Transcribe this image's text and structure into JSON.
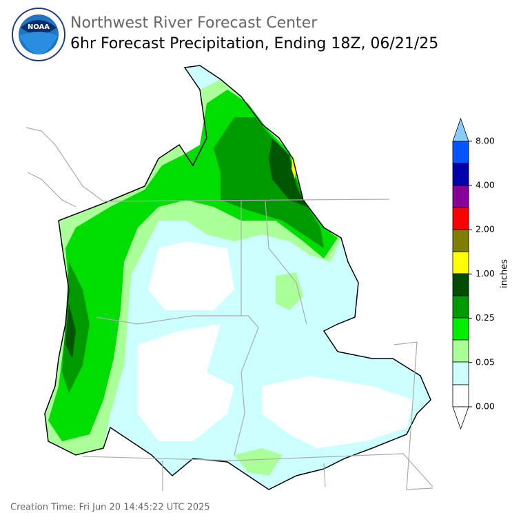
{
  "header": {
    "title": "Northwest River Forecast Center",
    "subtitle": "6hr Forecast Precipitation, Ending 18Z, 06/21/25"
  },
  "colorbar": {
    "label": "inches",
    "ticks": [
      "0.00",
      "0.05",
      "0.25",
      "1.00",
      "2.00",
      "4.00",
      "8.00"
    ]
  },
  "footer": "Creation Time: Fri Jun 20 14:45:22 UTC 2025"
}
